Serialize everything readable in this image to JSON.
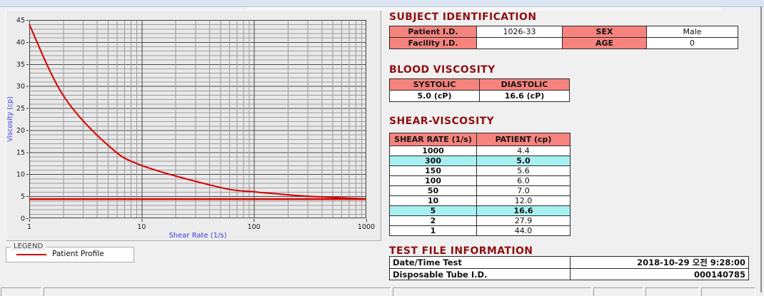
{
  "legend": {
    "title": "LEGEND",
    "entries": [
      {
        "label": "Patient Profile",
        "color": "#d80000"
      }
    ]
  },
  "subject": {
    "title": "SUBJECT IDENTIFICATION",
    "rows": [
      [
        "Patient I.D.",
        "1026-33",
        "SEX",
        "Male"
      ],
      [
        "Facility I.D.",
        "",
        "AGE",
        "0"
      ]
    ]
  },
  "blood": {
    "title": "BLOOD VISCOSITY",
    "headers": [
      "SYSTOLIC",
      "DIASTOLIC"
    ],
    "values": [
      "5.0 (cP)",
      "16.6 (cP)"
    ]
  },
  "shear": {
    "title": "SHEAR-VISCOSITY",
    "headers": [
      "SHEAR RATE (1/s)",
      "PATIENT (cp)"
    ],
    "rows": [
      [
        "1000",
        "4.4"
      ],
      [
        "300",
        "5.0"
      ],
      [
        "150",
        "5.6"
      ],
      [
        "100",
        "6.0"
      ],
      [
        "50",
        "7.0"
      ],
      [
        "10",
        "12.0"
      ],
      [
        "5",
        "16.6"
      ],
      [
        "2",
        "27.9"
      ],
      [
        "1",
        "44.0"
      ]
    ],
    "highlight_rows": [
      1,
      6
    ]
  },
  "test": {
    "title": "TEST FILE INFORMATION",
    "rows": [
      [
        "Date/Time Test",
        "2018-10-29  오전 9:28:00"
      ],
      [
        "Disposable Tube I.D.",
        "000140785"
      ]
    ]
  },
  "chart_data": {
    "type": "line",
    "x_scale": "log",
    "x": [
      1,
      2,
      5,
      10,
      50,
      100,
      150,
      300,
      1000
    ],
    "series": [
      {
        "name": "Patient Profile",
        "values": [
          44.0,
          27.9,
          16.6,
          12.0,
          7.0,
          6.0,
          5.6,
          5.0,
          4.4
        ],
        "color": "#d80000"
      }
    ],
    "reference_line_y": 4.35,
    "title": "",
    "xlabel": "Shear Rate (1/s)",
    "ylabel": "Viscosity (cp)",
    "xlim": [
      1,
      1000
    ],
    "ylim": [
      0,
      45
    ],
    "x_ticks": [
      1,
      10,
      100,
      1000
    ],
    "y_ticks": [
      0,
      5,
      10,
      15,
      20,
      25,
      30,
      35,
      40,
      45
    ],
    "grid": true,
    "legend_position": "below-left",
    "axis_label_color": "#3a3ae0",
    "tick_label_color": "#1a1a1a"
  },
  "colors": {
    "section_title": "#8e1013",
    "table_header_bg": "#f6837d",
    "row_highlight_bg": "#a7f0f1",
    "series_red": "#d80000",
    "axis_blue": "#3a3ae0"
  }
}
